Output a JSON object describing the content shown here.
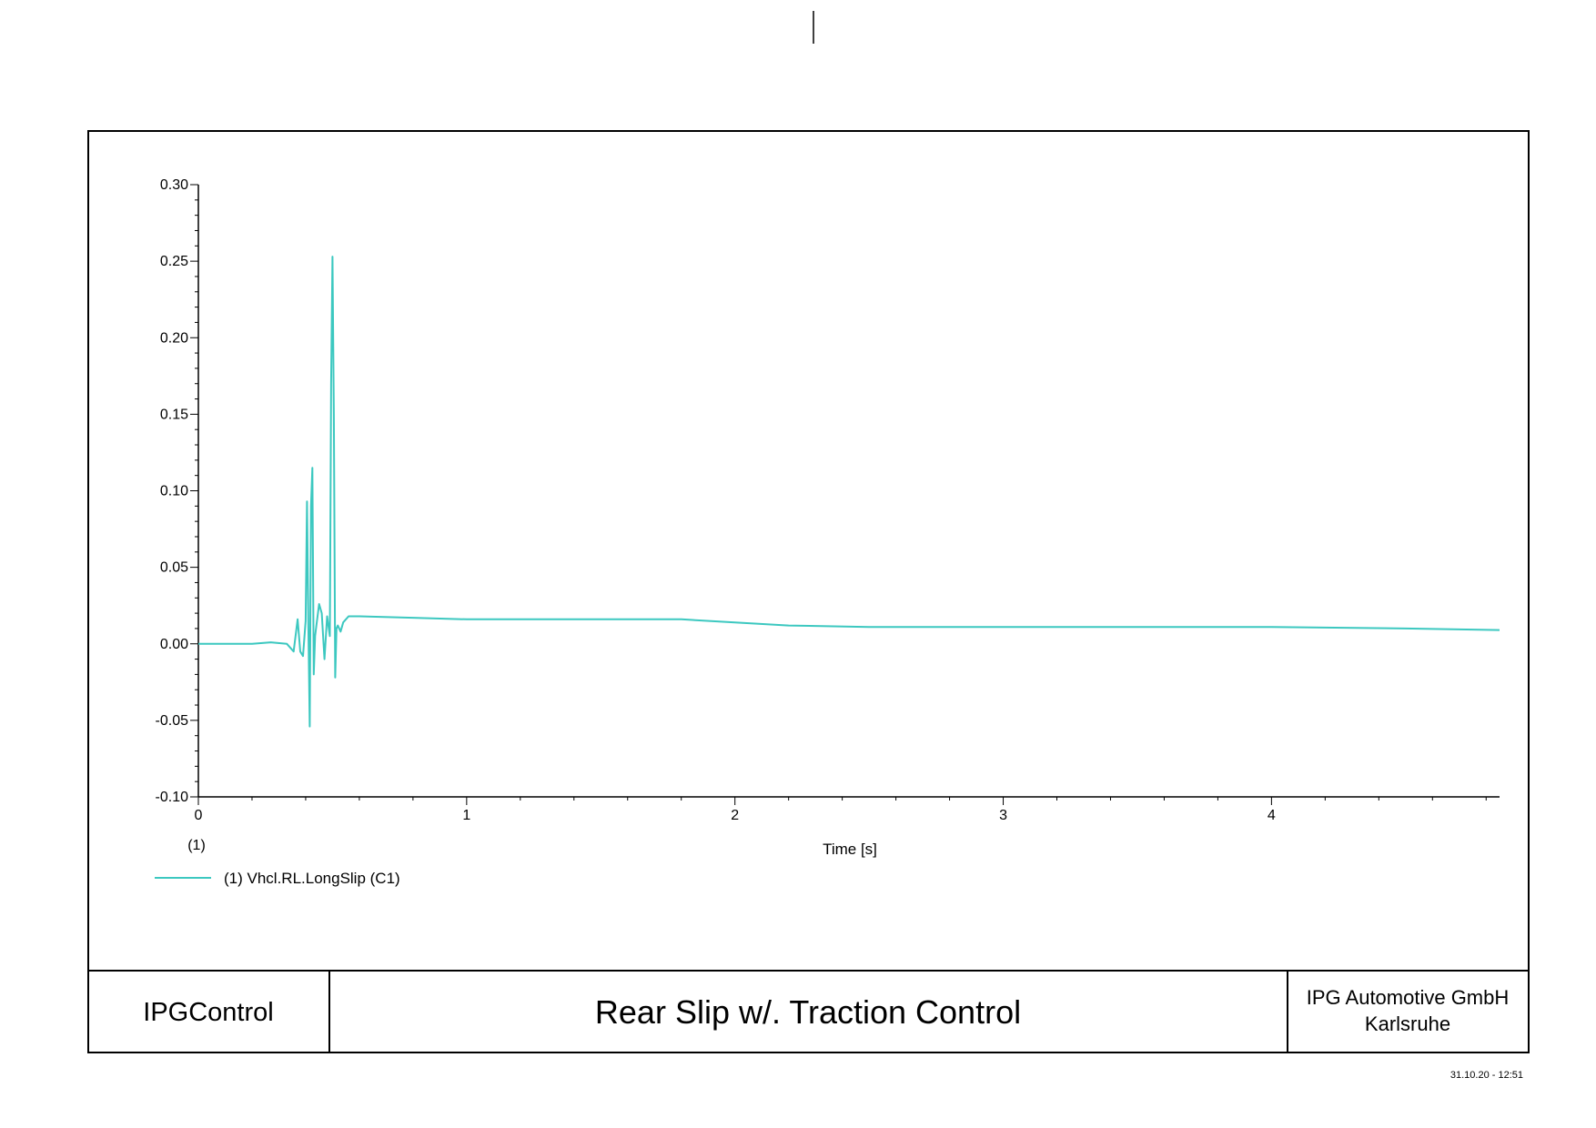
{
  "footer": {
    "app_name": "IPGControl",
    "title": "Rear Slip w/. Traction Control",
    "company_line1": "IPG Automotive GmbH",
    "company_line2": "Karlsruhe"
  },
  "timestamp": "31.10.20 - 12:51",
  "chart_data": {
    "type": "line",
    "title": "",
    "xlabel": "Time [s]",
    "ylabel": "",
    "xlim": [
      0,
      4.85
    ],
    "ylim": [
      -0.1,
      0.3
    ],
    "x_ticks": [
      0,
      1,
      2,
      3,
      4
    ],
    "x_tick_labels": [
      "0",
      "1",
      "2",
      "3",
      "4"
    ],
    "y_ticks": [
      -0.1,
      -0.05,
      0.0,
      0.05,
      0.1,
      0.15,
      0.2,
      0.25,
      0.3
    ],
    "y_tick_labels": [
      "-0.10",
      "-0.05",
      "0.00",
      "0.05",
      "0.10",
      "0.15",
      "0.20",
      "0.25",
      "0.30"
    ],
    "axis_index_label": "(1)",
    "grid": false,
    "legend_position": "bottom-left",
    "series": [
      {
        "name": "(1) Vhcl.RL.LongSlip (C1)",
        "color": "#3cc8c0",
        "x": [
          0,
          0.2,
          0.27,
          0.33,
          0.355,
          0.37,
          0.38,
          0.39,
          0.4,
          0.405,
          0.41,
          0.415,
          0.42,
          0.425,
          0.43,
          0.435,
          0.44,
          0.45,
          0.46,
          0.47,
          0.48,
          0.49,
          0.495,
          0.5,
          0.505,
          0.51,
          0.515,
          0.52,
          0.53,
          0.54,
          0.56,
          0.6,
          0.8,
          1.0,
          1.5,
          1.8,
          2.0,
          2.2,
          2.5,
          3.0,
          4.0,
          4.5,
          4.85
        ],
        "y": [
          0.0,
          0.0,
          0.001,
          0.0,
          -0.005,
          0.016,
          -0.005,
          -0.008,
          0.015,
          0.093,
          0.012,
          -0.054,
          0.09,
          0.115,
          -0.02,
          0.005,
          0.012,
          0.026,
          0.02,
          -0.01,
          0.018,
          0.005,
          0.17,
          0.253,
          0.15,
          -0.022,
          0.01,
          0.012,
          0.008,
          0.014,
          0.018,
          0.018,
          0.017,
          0.016,
          0.016,
          0.016,
          0.014,
          0.012,
          0.011,
          0.011,
          0.011,
          0.01,
          0.009
        ]
      }
    ]
  }
}
